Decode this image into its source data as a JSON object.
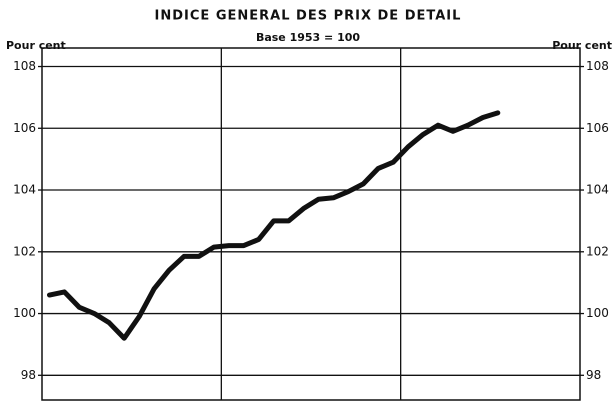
{
  "chart_data": {
    "type": "line",
    "title": "INDICE GENERAL DES PRIX DE DETAIL",
    "subtitle": "Base 1953 = 100",
    "y_label": "Pour cent",
    "y2_label": "Pour cent",
    "categories": [
      null,
      null,
      null,
      null,
      null,
      null,
      null,
      null,
      null,
      null,
      null,
      null,
      null,
      null,
      null,
      null,
      null,
      null,
      null,
      null,
      null,
      null,
      null,
      null,
      null,
      null,
      null,
      null,
      null,
      null,
      null,
      null,
      null,
      null,
      null,
      null
    ],
    "series": [
      {
        "color": "#111111",
        "values": [
          100.6,
          100.7,
          100.2,
          100.0,
          99.7,
          99.2,
          99.9,
          100.8,
          101.4,
          101.85,
          101.85,
          102.15,
          102.2,
          102.2,
          102.4,
          103.0,
          103.0,
          103.4,
          103.7,
          103.75,
          103.95,
          104.2,
          104.7,
          104.9,
          105.4,
          105.8,
          106.1,
          105.9,
          106.1,
          106.35,
          106.5,
          null,
          null,
          null,
          null,
          null
        ]
      }
    ],
    "ylim": [
      97.2,
      108.6
    ],
    "yticks": [
      98,
      100,
      102,
      104,
      106,
      108
    ],
    "y2lim": [
      97.2,
      108.6
    ],
    "y2ticks": [
      98,
      100,
      102,
      104,
      106,
      108
    ],
    "grid": true
  }
}
